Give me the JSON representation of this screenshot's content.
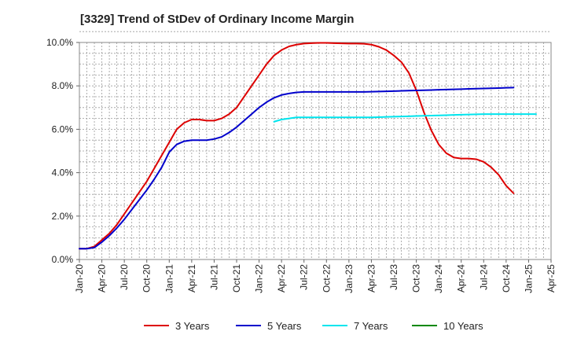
{
  "chart_data": {
    "type": "line",
    "title": "[3329]  Trend of StDev of Ordinary Income Margin",
    "xlabel": "",
    "ylabel": "",
    "ylim": [
      0,
      10
    ],
    "y_ticks": [
      0,
      2,
      4,
      6,
      8,
      10
    ],
    "y_tick_labels": [
      "0.0%",
      "2.0%",
      "4.0%",
      "6.0%",
      "8.0%",
      "10.0%"
    ],
    "x_tick_labels": [
      "Jan-20",
      "Apr-20",
      "Jul-20",
      "Oct-20",
      "Jan-21",
      "Apr-21",
      "Jul-21",
      "Oct-21",
      "Jan-22",
      "Apr-22",
      "Jul-22",
      "Oct-22",
      "Jan-23",
      "Apr-23",
      "Jul-23",
      "Oct-23",
      "Jan-24",
      "Apr-24",
      "Jul-24",
      "Oct-24",
      "Jan-25",
      "Apr-25"
    ],
    "x_start": "Jan-20",
    "grid": true,
    "legend_position": "bottom",
    "series": [
      {
        "name": "3 Years",
        "color": "#dd0000",
        "start": "Jan-20",
        "values": [
          0.5,
          0.5,
          0.6,
          0.9,
          1.2,
          1.6,
          2.1,
          2.6,
          3.1,
          3.6,
          4.2,
          4.8,
          5.4,
          6.0,
          6.3,
          6.45,
          6.45,
          6.4,
          6.4,
          6.5,
          6.7,
          7.0,
          7.5,
          8.0,
          8.5,
          9.0,
          9.4,
          9.65,
          9.82,
          9.9,
          9.95,
          9.97,
          9.98,
          9.98,
          9.97,
          9.96,
          9.95,
          9.95,
          9.94,
          9.9,
          9.8,
          9.65,
          9.4,
          9.1,
          8.6,
          7.8,
          6.8,
          5.95,
          5.3,
          4.9,
          4.7,
          4.65,
          4.65,
          4.62,
          4.5,
          4.25,
          3.9,
          3.4,
          3.05
        ]
      },
      {
        "name": "5 Years",
        "color": "#0000cc",
        "start": "Jan-20",
        "values": [
          0.5,
          0.5,
          0.55,
          0.8,
          1.1,
          1.45,
          1.85,
          2.3,
          2.75,
          3.2,
          3.7,
          4.25,
          4.95,
          5.3,
          5.45,
          5.5,
          5.5,
          5.5,
          5.55,
          5.65,
          5.85,
          6.1,
          6.4,
          6.7,
          7.0,
          7.25,
          7.45,
          7.58,
          7.65,
          7.7,
          7.72,
          7.72,
          7.72,
          7.72,
          7.72,
          7.72,
          7.72,
          7.72,
          7.72,
          7.73,
          7.74,
          7.75,
          7.76,
          7.77,
          7.78,
          7.79,
          7.8,
          7.81,
          7.82,
          7.83,
          7.84,
          7.85,
          7.86,
          7.87,
          7.88,
          7.89,
          7.9,
          7.91,
          7.92
        ]
      },
      {
        "name": "7 Years",
        "color": "#00e5ee",
        "start": "Mar-22",
        "values": [
          6.35,
          6.45,
          6.5,
          6.55,
          6.55,
          6.55,
          6.55,
          6.55,
          6.55,
          6.55,
          6.55,
          6.55,
          6.55,
          6.55,
          6.56,
          6.57,
          6.58,
          6.59,
          6.6,
          6.61,
          6.62,
          6.63,
          6.64,
          6.65,
          6.66,
          6.67,
          6.68,
          6.69,
          6.7,
          6.7,
          6.7,
          6.7,
          6.7,
          6.7,
          6.7,
          6.7
        ]
      },
      {
        "name": "10 Years",
        "color": "#008800",
        "start": "Jan-20",
        "values": []
      }
    ]
  }
}
